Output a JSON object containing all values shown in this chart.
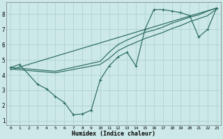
{
  "xlabel": "Humidex (Indice chaleur)",
  "xlim": [
    -0.5,
    23.5
  ],
  "ylim": [
    0.7,
    8.8
  ],
  "yticks": [
    1,
    2,
    3,
    4,
    5,
    6,
    7,
    8
  ],
  "xticks": [
    0,
    1,
    2,
    3,
    4,
    5,
    6,
    7,
    8,
    9,
    10,
    11,
    12,
    13,
    14,
    15,
    16,
    17,
    18,
    19,
    20,
    21,
    22,
    23
  ],
  "bg_color": "#cce8e8",
  "grid_color": "#aacfcf",
  "line_color": "#2a6b5e",
  "line1_x": [
    0,
    1,
    3,
    4,
    5,
    6,
    7,
    8,
    9,
    10,
    11,
    12,
    13,
    14,
    15,
    16,
    17,
    18,
    19,
    20,
    21,
    22,
    23
  ],
  "line1_y": [
    4.5,
    4.7,
    3.4,
    3.1,
    2.6,
    2.2,
    1.4,
    1.45,
    1.7,
    3.7,
    4.6,
    5.2,
    5.5,
    4.6,
    7.0,
    8.3,
    8.3,
    8.2,
    8.1,
    7.9,
    6.5,
    7.0,
    8.4
  ],
  "line2_x": [
    0,
    4,
    5,
    10,
    11,
    12,
    13,
    14,
    15,
    16,
    17,
    18,
    19,
    20,
    21,
    22,
    23
  ],
  "line2_y": [
    4.5,
    4.3,
    4.25,
    4.9,
    5.5,
    6.0,
    6.3,
    6.55,
    6.8,
    6.95,
    7.15,
    7.4,
    7.6,
    7.8,
    7.95,
    8.2,
    8.4
  ],
  "line3_x": [
    0,
    4,
    5,
    10,
    11,
    12,
    13,
    14,
    15,
    16,
    17,
    18,
    19,
    20,
    21,
    22,
    23
  ],
  "line3_y": [
    4.4,
    4.2,
    4.15,
    4.7,
    5.1,
    5.6,
    5.9,
    6.15,
    6.4,
    6.6,
    6.8,
    7.05,
    7.25,
    7.5,
    7.7,
    7.9,
    8.35
  ],
  "line4_x": [
    0,
    23
  ],
  "line4_y": [
    4.35,
    8.4
  ]
}
